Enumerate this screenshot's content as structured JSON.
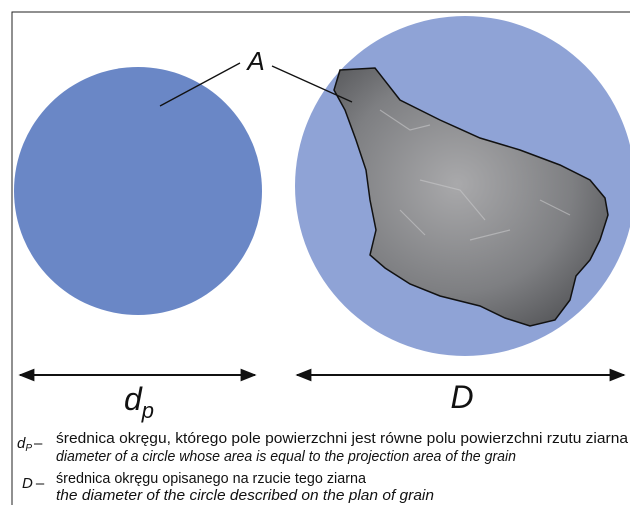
{
  "labels": {
    "area": "A",
    "small_diameter": {
      "symbol": "d",
      "subscript": "p"
    },
    "large_diameter": "D"
  },
  "legend": [
    {
      "symbol": "d",
      "subscript": "P",
      "dash": "–",
      "polish": "średnica okręgu, którego pole powierzchni jest równe polu powierzchni rzutu ziarna",
      "english": "diameter of a circle whose area is equal to the projection area of the grain"
    },
    {
      "symbol": "D",
      "dash": "–",
      "polish": "średnica okręgu opisanego na rzucie tego ziarna",
      "english": "the diameter of the circle described on the plan of grain"
    }
  ]
}
